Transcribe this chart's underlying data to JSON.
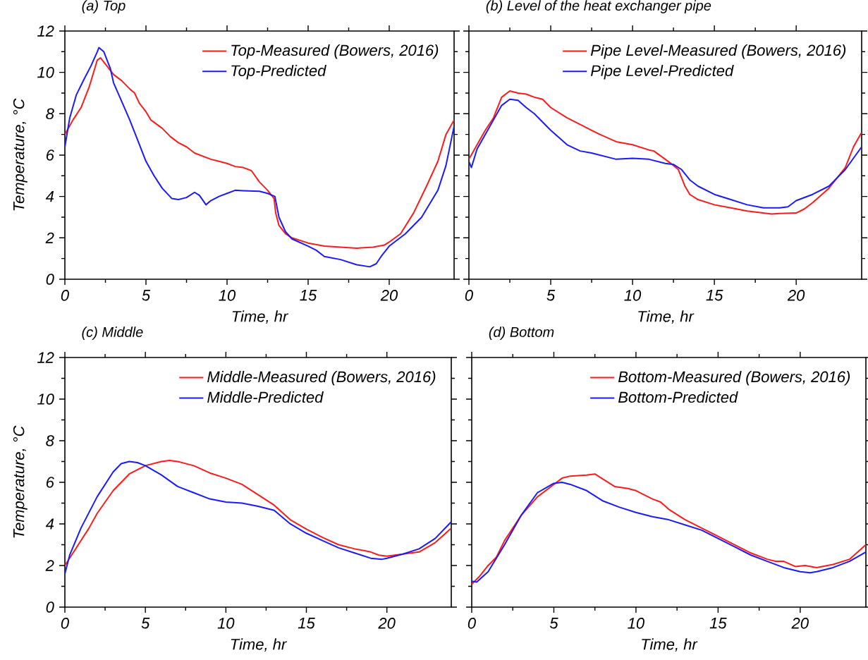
{
  "chart_data": [
    {
      "type": "line",
      "title": "(a) Top",
      "xlabel": "Time, hr",
      "ylabel": "Temperature, °C",
      "xlim": [
        0,
        24
      ],
      "ylim": [
        0,
        12
      ],
      "xticks": [
        0,
        5,
        10,
        15,
        20
      ],
      "yticks": [
        0,
        2,
        4,
        6,
        8,
        10,
        12
      ],
      "legend": "top right",
      "line_style": "solid",
      "series": [
        {
          "name": "Top-Measured (Bowers, 2016)",
          "color": "#ff1a1a",
          "x": [
            0,
            0.5,
            1,
            1.5,
            2,
            2.2,
            2.5,
            3,
            3.5,
            4,
            4.3,
            4.6,
            5,
            5.3,
            6,
            6.5,
            7,
            7.5,
            8,
            9,
            9.5,
            10,
            10.5,
            11,
            11.5,
            12,
            12.5,
            12.9,
            13,
            13.2,
            13.6,
            14,
            15,
            16,
            17,
            18,
            19,
            19.7,
            20,
            20.7,
            21.5,
            22.3,
            23,
            23.5,
            24
          ],
          "values": [
            7.0,
            7.7,
            8.3,
            9.3,
            10.6,
            10.7,
            10.4,
            9.9,
            9.6,
            9.2,
            9.0,
            8.5,
            8.1,
            7.7,
            7.3,
            6.9,
            6.6,
            6.4,
            6.1,
            5.8,
            5.7,
            5.6,
            5.45,
            5.4,
            5.25,
            4.7,
            4.3,
            3.9,
            3.2,
            2.6,
            2.2,
            2.0,
            1.75,
            1.6,
            1.55,
            1.5,
            1.55,
            1.65,
            1.8,
            2.2,
            3.2,
            4.5,
            5.7,
            7.0,
            7.7
          ]
        },
        {
          "name": "Top-Predicted",
          "color": "#1a1aff",
          "x": [
            0,
            0.3,
            0.7,
            1.2,
            1.6,
            2,
            2.1,
            2.4,
            2.8,
            3,
            3.5,
            4,
            4.5,
            5,
            5.5,
            6,
            6.6,
            7,
            7.5,
            8,
            8.3,
            8.7,
            9,
            9.5,
            10,
            10.5,
            11,
            12,
            12.5,
            12.95,
            13.2,
            13.6,
            14,
            15,
            15.5,
            16,
            17,
            18,
            18.8,
            19.2,
            19.5,
            20,
            21,
            22,
            23,
            23.5,
            24
          ],
          "values": [
            6.4,
            7.8,
            8.9,
            9.7,
            10.3,
            11.0,
            11.2,
            11.0,
            10.2,
            9.5,
            8.6,
            7.7,
            6.7,
            5.7,
            5.0,
            4.4,
            3.9,
            3.85,
            3.95,
            4.2,
            4.05,
            3.6,
            3.8,
            4.0,
            4.15,
            4.3,
            4.28,
            4.25,
            4.15,
            4.0,
            3.0,
            2.3,
            1.95,
            1.6,
            1.4,
            1.1,
            0.95,
            0.7,
            0.6,
            0.75,
            1.1,
            1.6,
            2.2,
            3.0,
            4.3,
            5.5,
            7.4
          ]
        }
      ]
    },
    {
      "type": "line",
      "title": "(b) Level of the heat exchanger pipe",
      "xlabel": "Time, hr",
      "xlim": [
        0,
        24
      ],
      "ylim": [
        0,
        12
      ],
      "xticks": [
        0,
        5,
        10,
        15,
        20
      ],
      "yticks": [
        0,
        2,
        4,
        6,
        8,
        10,
        12
      ],
      "tick_labels": "x",
      "legend": "top right",
      "line_style": "solid",
      "series": [
        {
          "name": "Pipe Level-Measured (Bowers, 2016)",
          "color": "#ff1a1a",
          "x": [
            0,
            0.5,
            1,
            1.5,
            2,
            2.5,
            3,
            3.5,
            4,
            4.5,
            5,
            6,
            7,
            7.5,
            8,
            9,
            10,
            11,
            11.3,
            12,
            12.5,
            12.8,
            13.2,
            13.5,
            14,
            15,
            16,
            17,
            18,
            18.5,
            19,
            20,
            20.5,
            21,
            22,
            23,
            23.5,
            24
          ],
          "values": [
            5.8,
            6.5,
            7.2,
            7.8,
            8.8,
            9.1,
            9.0,
            8.95,
            8.8,
            8.7,
            8.3,
            7.8,
            7.4,
            7.2,
            7.0,
            6.65,
            6.5,
            6.25,
            6.2,
            5.8,
            5.5,
            5.3,
            4.5,
            4.1,
            3.85,
            3.6,
            3.45,
            3.3,
            3.2,
            3.15,
            3.18,
            3.2,
            3.4,
            3.7,
            4.4,
            5.4,
            6.4,
            7.1
          ]
        },
        {
          "name": "Pipe Level-Predicted",
          "color": "#1a1aff",
          "x": [
            0,
            0.15,
            0.5,
            1,
            1.5,
            2,
            2.5,
            3,
            3.5,
            4,
            5,
            6,
            6.8,
            7.5,
            8.5,
            9,
            10,
            11,
            12,
            12.5,
            13,
            13.5,
            14,
            15,
            16,
            17,
            18,
            19,
            19.5,
            20,
            21,
            22,
            23,
            24
          ],
          "values": [
            5.7,
            5.4,
            6.3,
            7.0,
            7.7,
            8.4,
            8.7,
            8.65,
            8.3,
            8.0,
            7.2,
            6.5,
            6.2,
            6.1,
            5.9,
            5.8,
            5.85,
            5.8,
            5.6,
            5.55,
            5.3,
            4.8,
            4.5,
            4.1,
            3.85,
            3.6,
            3.45,
            3.45,
            3.5,
            3.8,
            4.1,
            4.5,
            5.3,
            6.4
          ]
        }
      ]
    },
    {
      "type": "line",
      "title": "(c) Middle",
      "xlabel": "Time, hr",
      "ylabel": "Temperature, °C",
      "xlim": [
        0,
        24
      ],
      "ylim": [
        0,
        12
      ],
      "xticks": [
        0,
        5,
        10,
        15,
        20
      ],
      "yticks": [
        0,
        2,
        4,
        6,
        8,
        10,
        12
      ],
      "legend": "top right",
      "line_style": "solid",
      "series": [
        {
          "name": "Middle-Measured (Bowers, 2016)",
          "color": "#ff1a1a",
          "x": [
            0,
            0.5,
            1,
            1.5,
            2,
            3,
            4,
            5,
            6,
            6.5,
            7,
            8,
            9,
            10,
            11,
            12,
            13,
            14,
            15,
            16,
            17,
            18,
            19,
            19.5,
            20,
            21,
            22,
            23,
            24
          ],
          "values": [
            2.0,
            2.6,
            3.2,
            3.8,
            4.5,
            5.6,
            6.4,
            6.8,
            7.0,
            7.05,
            7.0,
            6.8,
            6.45,
            6.2,
            5.9,
            5.4,
            4.9,
            4.2,
            3.75,
            3.35,
            3.0,
            2.8,
            2.65,
            2.5,
            2.45,
            2.55,
            2.65,
            3.1,
            3.8
          ]
        },
        {
          "name": "Middle-Predicted",
          "color": "#1a1aff",
          "x": [
            0,
            0.3,
            1,
            2,
            3,
            3.5,
            4,
            4.5,
            5,
            6,
            7,
            8,
            9,
            10,
            11,
            12,
            13,
            14,
            15,
            16,
            17,
            18,
            19,
            19.7,
            20,
            21,
            22,
            23,
            24
          ],
          "values": [
            1.6,
            2.5,
            3.8,
            5.3,
            6.5,
            6.9,
            7.0,
            6.95,
            6.8,
            6.35,
            5.8,
            5.5,
            5.2,
            5.05,
            5.0,
            4.85,
            4.65,
            4.0,
            3.55,
            3.2,
            2.85,
            2.6,
            2.35,
            2.3,
            2.35,
            2.55,
            2.8,
            3.3,
            4.1
          ]
        }
      ]
    },
    {
      "type": "line",
      "title": "(d) Bottom",
      "xlabel": "Time, hr",
      "xlim": [
        0,
        24
      ],
      "ylim": [
        0,
        12
      ],
      "xticks": [
        0,
        5,
        10,
        15,
        20
      ],
      "yticks": [
        0,
        2,
        4,
        6,
        8,
        10,
        12
      ],
      "tick_labels": "x",
      "legend": "top right",
      "line_style": "solid",
      "series": [
        {
          "name": "Bottom-Measured (Bowers, 2016)",
          "color": "#ff1a1a",
          "x": [
            0,
            0.5,
            1,
            1.5,
            2,
            3,
            4,
            5,
            5.5,
            6,
            7,
            7.5,
            8,
            8.7,
            9.5,
            10,
            11,
            11.5,
            12,
            13,
            14,
            15,
            16,
            17,
            18,
            18.5,
            19,
            19.7,
            20.3,
            21,
            22,
            23,
            24
          ],
          "values": [
            1.1,
            1.5,
            2.0,
            2.4,
            3.2,
            4.4,
            5.3,
            5.9,
            6.2,
            6.3,
            6.35,
            6.4,
            6.15,
            5.8,
            5.7,
            5.6,
            5.2,
            5.05,
            4.7,
            4.2,
            3.8,
            3.4,
            3.0,
            2.6,
            2.3,
            2.2,
            2.2,
            1.95,
            2.0,
            1.9,
            2.05,
            2.3,
            3.0
          ]
        },
        {
          "name": "Bottom-Predicted",
          "color": "#1a1aff",
          "x": [
            0,
            0.3,
            1,
            2,
            3,
            4,
            5,
            5.5,
            6,
            7,
            8,
            9,
            10,
            11,
            12,
            13,
            14,
            15,
            16,
            17,
            18,
            19,
            20,
            20.6,
            21,
            22,
            23,
            24
          ],
          "values": [
            1.25,
            1.2,
            1.7,
            3.0,
            4.4,
            5.5,
            5.95,
            6.0,
            5.9,
            5.6,
            5.1,
            4.8,
            4.55,
            4.35,
            4.2,
            3.95,
            3.7,
            3.3,
            2.9,
            2.5,
            2.2,
            1.9,
            1.7,
            1.65,
            1.7,
            1.9,
            2.2,
            2.65
          ]
        }
      ]
    }
  ]
}
